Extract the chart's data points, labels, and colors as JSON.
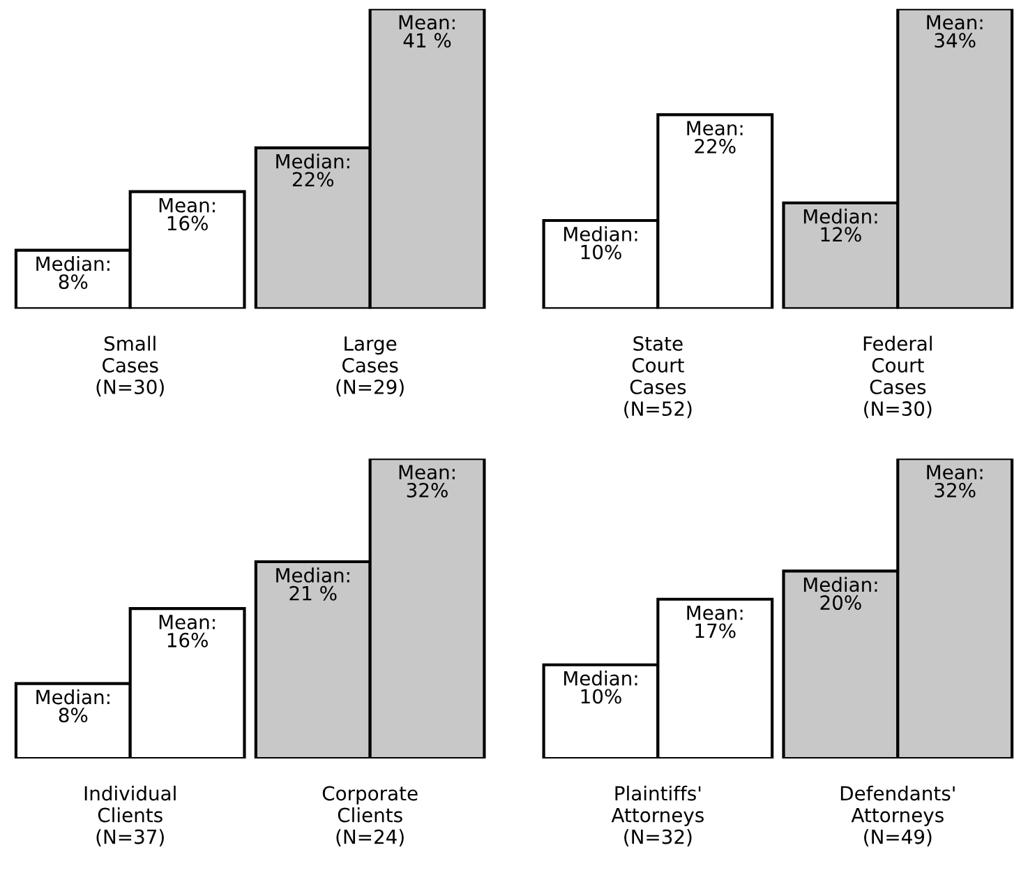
{
  "chart_data": [
    {
      "type": "bar",
      "categories": [
        "Small\nCases\n(N=30)",
        "Large\nCases\n(N=29)"
      ],
      "series": [
        {
          "name": "Median:",
          "values": [
            8,
            22
          ],
          "value_labels": [
            "8%",
            "22%"
          ],
          "colors": [
            "#ffffff",
            "#c8c8c8"
          ]
        },
        {
          "name": "Mean:",
          "values": [
            16,
            41
          ],
          "value_labels": [
            "16%",
            "41 %"
          ],
          "colors": [
            "#ffffff",
            "#c8c8c8"
          ]
        }
      ],
      "legend": false,
      "tick_labels": "x",
      "grid": false
    },
    {
      "type": "bar",
      "categories": [
        "State\nCourt\nCases\n(N=52)",
        "Federal\nCourt\nCases\n(N=30)"
      ],
      "series": [
        {
          "name": "Median:",
          "values": [
            10,
            12
          ],
          "value_labels": [
            "10%",
            "12%"
          ],
          "colors": [
            "#ffffff",
            "#c8c8c8"
          ]
        },
        {
          "name": "Mean:",
          "values": [
            22,
            34
          ],
          "value_labels": [
            "22%",
            "34%"
          ],
          "colors": [
            "#ffffff",
            "#c8c8c8"
          ]
        }
      ],
      "legend": false,
      "tick_labels": "x",
      "grid": false
    },
    {
      "type": "bar",
      "categories": [
        "Individual\nClients\n(N=37)",
        "Corporate\nClients\n(N=24)"
      ],
      "series": [
        {
          "name": "Median:",
          "values": [
            8,
            21
          ],
          "value_labels": [
            "8%",
            "21 %"
          ],
          "colors": [
            "#ffffff",
            "#c8c8c8"
          ]
        },
        {
          "name": "Mean:",
          "values": [
            16,
            32
          ],
          "value_labels": [
            "16%",
            "32%"
          ],
          "colors": [
            "#ffffff",
            "#c8c8c8"
          ]
        }
      ],
      "legend": false,
      "tick_labels": "x",
      "grid": false
    },
    {
      "type": "bar",
      "categories": [
        "Plaintiffs'\nAttorneys\n(N=32)",
        "Defendants'\nAttorneys\n(N=49)"
      ],
      "series": [
        {
          "name": "Median:",
          "values": [
            10,
            20
          ],
          "value_labels": [
            "10%",
            "20%"
          ],
          "colors": [
            "#ffffff",
            "#c8c8c8"
          ]
        },
        {
          "name": "Mean:",
          "values": [
            17,
            32
          ],
          "value_labels": [
            "17%",
            "32%"
          ],
          "colors": [
            "#ffffff",
            "#c8c8c8"
          ]
        }
      ],
      "legend": false,
      "tick_labels": "x",
      "grid": false
    }
  ]
}
